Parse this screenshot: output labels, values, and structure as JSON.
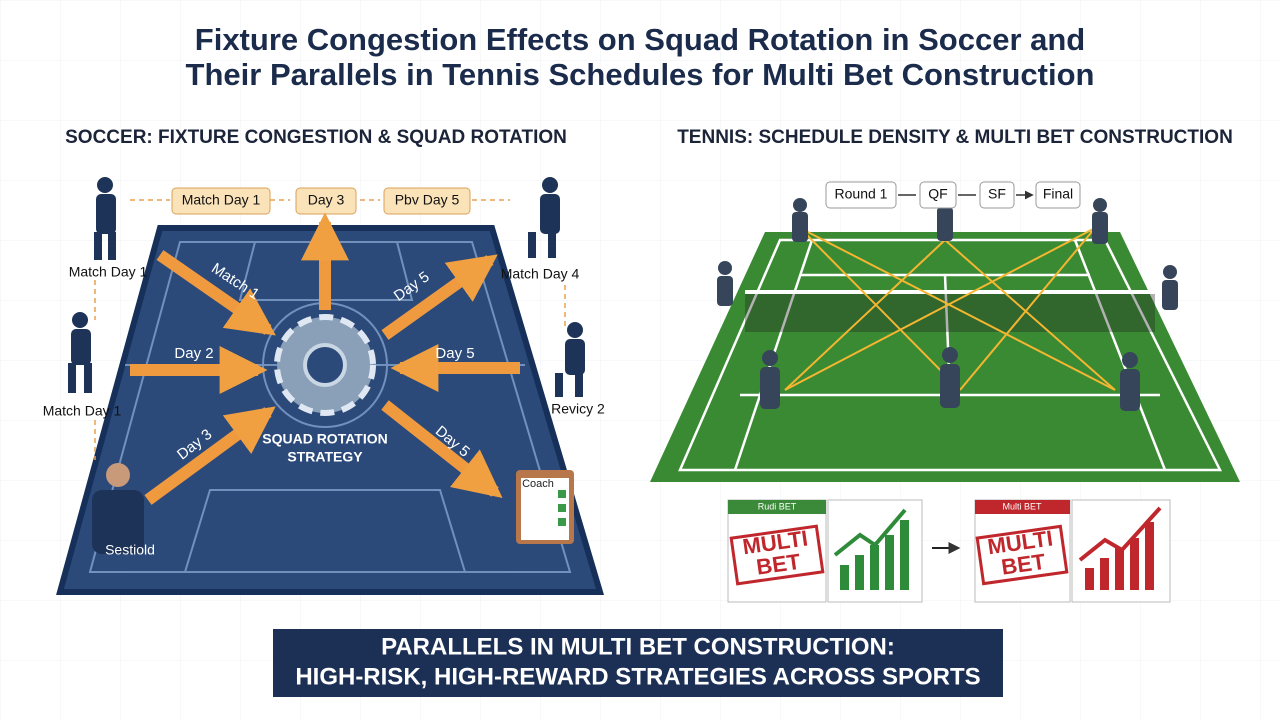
{
  "header": {
    "title": [
      "Fixture Congestion Effects on Squad Rotation in Soccer and",
      "Their Parallels in Tennis Schedules for Multi Bet Construction"
    ]
  },
  "soccer": {
    "heading": "SOCCER: FIXTURE CONGESTION & SQUAD ROTATION",
    "flow": [
      "Match Day 1",
      "Day 3",
      "Pbv Day 5"
    ],
    "players": [
      "Match Day 1",
      "Match Day 1",
      "Match Day 4",
      "Revicy 2",
      "Sestiold"
    ],
    "arrows": [
      "Match 1",
      "Day 5",
      "Day 2",
      "Day 5",
      "Day 3",
      "Day 5"
    ],
    "center": [
      "SQUAD ROTATION",
      "STRATEGY"
    ],
    "clipboard": "Coach"
  },
  "tennis": {
    "heading": "TENNIS: SCHEDULE DENSITY & MULTI BET CONSTRUCTION",
    "flow": [
      "Round 1",
      "QF",
      "SF",
      "Final"
    ],
    "slips": [
      {
        "tag": "Rudi BET",
        "stamp": [
          "MULTI",
          "BET"
        ]
      },
      {
        "tag": "Multi BET",
        "stamp": [
          "MULTI",
          "BET"
        ]
      }
    ]
  },
  "banner": [
    "PARALLELS IN MULTI BET CONSTRUCTION:",
    "HIGH-RISK, HIGH-REWARD STRATEGIES ACROSS SPORTS"
  ]
}
